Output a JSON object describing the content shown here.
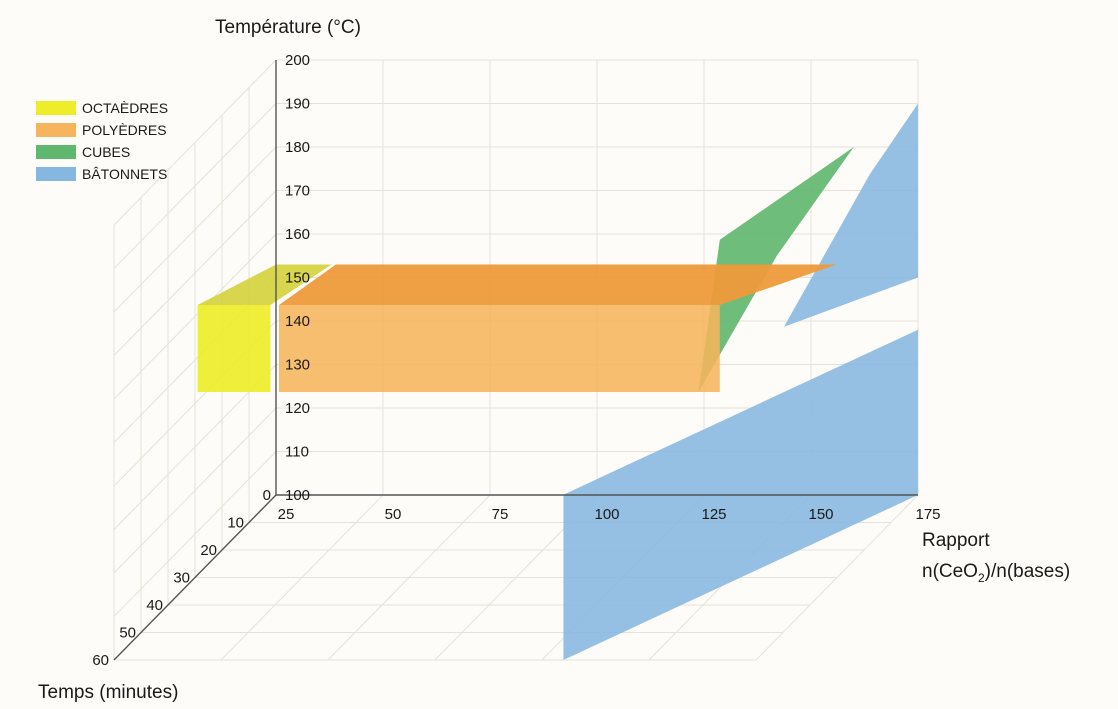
{
  "chart_data": {
    "type": "3d-region",
    "axes": {
      "y": {
        "label": "Température (°C)",
        "range": [
          100,
          200
        ],
        "ticks": [
          100,
          110,
          120,
          130,
          140,
          150,
          160,
          170,
          180,
          190,
          200
        ]
      },
      "x": {
        "label_line1": "Rapport",
        "label_line2_prefix": "n(CeO",
        "label_line2_sub": "2",
        "label_line2_suffix": ")/n(bases)",
        "range": [
          25,
          175
        ],
        "ticks": [
          25,
          50,
          75,
          100,
          125,
          150,
          175
        ]
      },
      "z": {
        "label": "Temps (minutes)",
        "range": [
          0,
          60
        ],
        "ticks": [
          0,
          10,
          20,
          30,
          40,
          50,
          60
        ]
      }
    },
    "legend": {
      "placement": "top-left",
      "entries": [
        {
          "name": "OCTAÈDRES",
          "color": "#eded2a"
        },
        {
          "name": "POLYÈDRES",
          "color": "#f6b55c"
        },
        {
          "name": "CUBES",
          "color": "#5fb66d"
        },
        {
          "name": "BÂTONNETS",
          "color": "#86b7e0"
        }
      ]
    },
    "regions": [
      {
        "shape": "OCTAÈDRES",
        "ratio": [
          25,
          50
        ],
        "temperature": [
          130,
          150
        ],
        "time": [
          0,
          10
        ]
      },
      {
        "shape": "POLYÈDRES",
        "ratio": [
          25,
          130
        ],
        "temperature": [
          130,
          150
        ],
        "time": [
          0,
          10
        ]
      },
      {
        "shape": "CUBES",
        "ratio": [
          130,
          150
        ],
        "temperature": [
          130,
          180
        ],
        "time": [
          0,
          10
        ]
      },
      {
        "shape": "BÂTONNETS",
        "ratio": [
          150,
          175
        ],
        "temperature": [
          150,
          190
        ],
        "time": [
          0,
          60
        ]
      },
      {
        "shape": "BÂTONNETS",
        "ratio": [
          130,
          175
        ],
        "temperature": [
          100,
          120
        ],
        "time": [
          0,
          60
        ]
      }
    ],
    "grid": true
  }
}
